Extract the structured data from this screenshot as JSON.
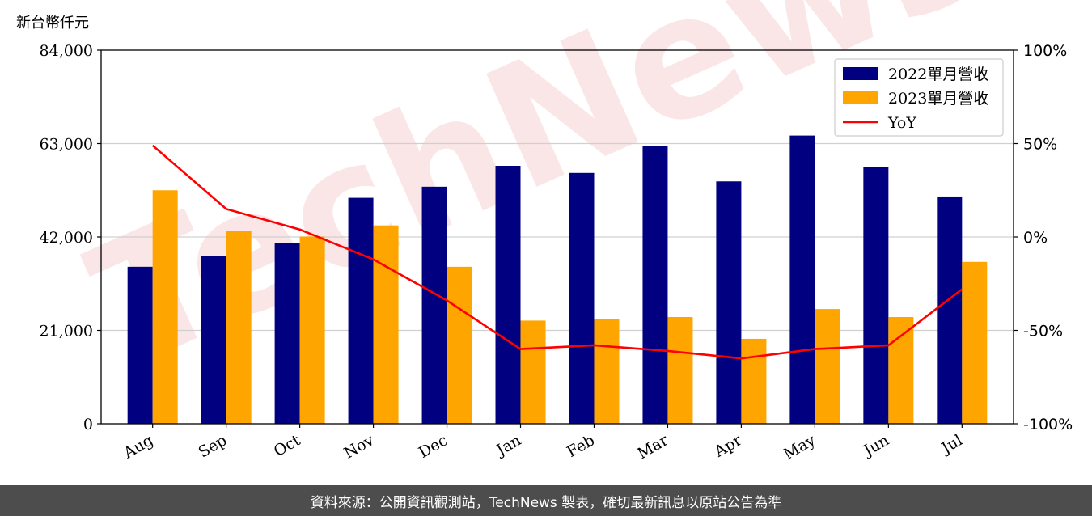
{
  "unit_label": "新台幣仟元",
  "watermark": "TechNews",
  "footer_text": "資料來源：公開資訊觀測站，TechNews 製表，確切最新訊息以原站公告為準",
  "colors": {
    "bar_2022": "#000080",
    "bar_2023": "#ffa500",
    "yoy": "#ff0000",
    "grid": "#d0d0d0",
    "footer_bg": "#4d4d4d"
  },
  "chart_data": {
    "type": "bar",
    "categories": [
      "Aug",
      "Sep",
      "Oct",
      "Nov",
      "Dec",
      "Jan",
      "Feb",
      "Mar",
      "Apr",
      "May",
      "Jun",
      "Jul"
    ],
    "series": [
      {
        "name": "2022單月營收",
        "axis": "left",
        "type": "bar",
        "values": [
          35300,
          37800,
          40600,
          50800,
          53300,
          58000,
          56400,
          62500,
          54500,
          64800,
          57800,
          51100
        ]
      },
      {
        "name": "2023單月營收",
        "axis": "left",
        "type": "bar",
        "values": [
          52500,
          43300,
          42100,
          44600,
          35300,
          23200,
          23500,
          24000,
          19100,
          25800,
          24000,
          36400
        ]
      }
    ],
    "secondary_series": [
      {
        "name": "YoY",
        "axis": "right",
        "type": "line",
        "values": [
          49,
          15,
          4,
          -12,
          -34,
          -60,
          -58,
          -61,
          -65,
          -60,
          -58,
          -28
        ]
      }
    ],
    "y_left": {
      "lim": [
        0,
        84000
      ],
      "ticks": [
        "0",
        "21,000",
        "42,000",
        "63,000",
        "84,000"
      ],
      "tick_values": [
        0,
        21000,
        42000,
        63000,
        84000
      ]
    },
    "y_right": {
      "lim": [
        -100,
        100
      ],
      "ticks": [
        "-100%",
        "-50%",
        "0%",
        "50%",
        "100%"
      ],
      "tick_values": [
        -100,
        -50,
        0,
        50,
        100
      ]
    },
    "legend_position": "top-right",
    "grid": "horizontal"
  }
}
